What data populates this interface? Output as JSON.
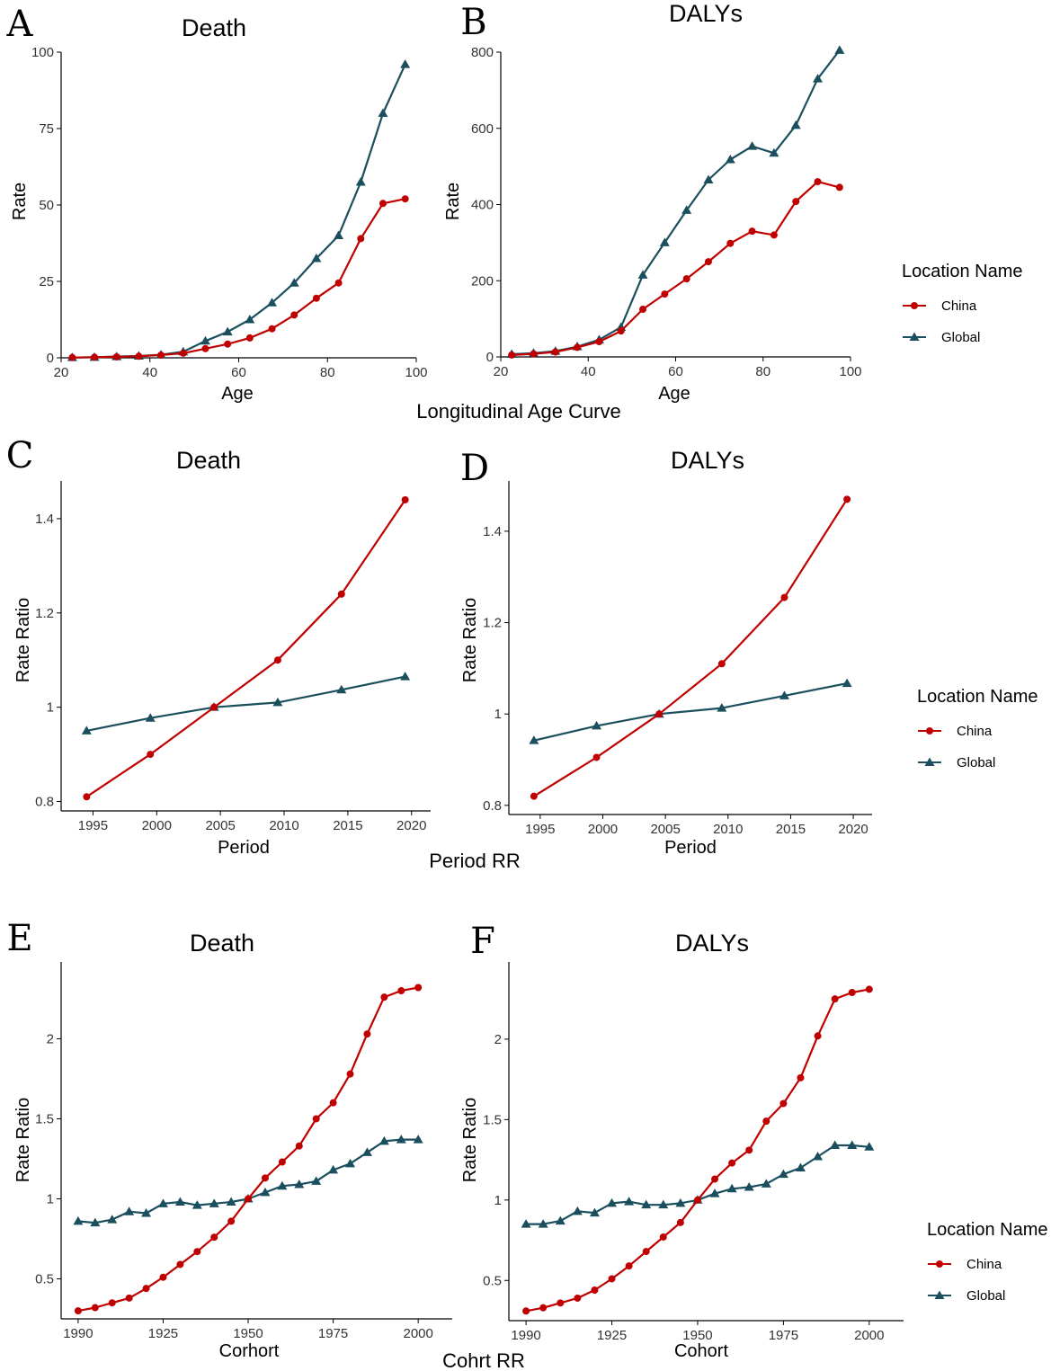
{
  "colors": {
    "china": "#c00000",
    "global": "#1b4f5e",
    "axis": "#000000"
  },
  "section_titles": {
    "age": "Longitudinal Age Curve",
    "period": "Period RR",
    "cohort": "Cohrt RR"
  },
  "legend": {
    "title": "Location Name",
    "china": "China",
    "global": "Global"
  },
  "chart_data": [
    {
      "id": "A",
      "panel_label": "A",
      "type": "line",
      "title": "Death",
      "xlabel": "Age",
      "ylabel": "Rate",
      "xlim": [
        20,
        100
      ],
      "ylim": [
        0,
        100
      ],
      "xticks": [
        20,
        40,
        60,
        80,
        100
      ],
      "yticks": [
        0,
        25,
        50,
        75,
        100
      ],
      "x": [
        22.5,
        27.5,
        32.5,
        37.5,
        42.5,
        47.5,
        52.5,
        57.5,
        62.5,
        67.5,
        72.5,
        77.5,
        82.5,
        87.5,
        92.5,
        97.5
      ],
      "series": [
        {
          "name": "China",
          "values": [
            0.1,
            0.2,
            0.3,
            0.5,
            0.9,
            1.5,
            3.0,
            4.5,
            6.5,
            9.5,
            14,
            19.5,
            24.5,
            39,
            50.5,
            52
          ]
        },
        {
          "name": "Global",
          "values": [
            0.1,
            0.2,
            0.4,
            0.6,
            1.0,
            2.0,
            5.5,
            8.5,
            12.5,
            18,
            24.5,
            32.5,
            40,
            57.5,
            80,
            96
          ]
        }
      ]
    },
    {
      "id": "B",
      "panel_label": "B",
      "type": "line",
      "title": "DALYs",
      "xlabel": "Age",
      "ylabel": "Rate",
      "xlim": [
        20,
        100
      ],
      "ylim": [
        0,
        800
      ],
      "xticks": [
        20,
        40,
        60,
        80,
        100
      ],
      "yticks": [
        0,
        200,
        400,
        600,
        800
      ],
      "x": [
        22.5,
        27.5,
        32.5,
        37.5,
        42.5,
        47.5,
        52.5,
        57.5,
        62.5,
        67.5,
        72.5,
        77.5,
        82.5,
        87.5,
        92.5,
        97.5
      ],
      "series": [
        {
          "name": "China",
          "values": [
            5,
            8,
            13,
            25,
            40,
            68,
            125,
            165,
            205,
            250,
            298,
            330,
            320,
            408,
            460,
            445
          ]
        },
        {
          "name": "Global",
          "values": [
            7,
            10,
            15,
            27,
            45,
            78,
            215,
            300,
            385,
            465,
            518,
            553,
            535,
            608,
            730,
            805
          ]
        }
      ]
    },
    {
      "id": "C",
      "panel_label": "C",
      "type": "line",
      "title": "Death",
      "xlabel": "Period",
      "ylabel": "Rate Ratio",
      "xlim": [
        1992.5,
        2021.5
      ],
      "ylim": [
        0.78,
        1.48
      ],
      "xticks": [
        1995,
        2000,
        2005,
        2010,
        2015,
        2020
      ],
      "yticks": [
        0.8,
        1.0,
        1.2,
        1.4
      ],
      "x": [
        1994.5,
        1999.5,
        2004.5,
        2009.5,
        2014.5,
        2019.5
      ],
      "series": [
        {
          "name": "China",
          "values": [
            0.81,
            0.9,
            1.0,
            1.1,
            1.24,
            1.44
          ]
        },
        {
          "name": "Global",
          "values": [
            0.95,
            0.977,
            1.0,
            1.01,
            1.037,
            1.065
          ]
        }
      ]
    },
    {
      "id": "D",
      "panel_label": "D",
      "type": "line",
      "title": "DALYs",
      "xlabel": "Period",
      "ylabel": "Rate Ratio",
      "xlim": [
        1992.5,
        2021.5
      ],
      "ylim": [
        0.78,
        1.51
      ],
      "xticks": [
        1995,
        2000,
        2005,
        2010,
        2015,
        2020
      ],
      "yticks": [
        0.8,
        1.0,
        1.2,
        1.4
      ],
      "x": [
        1994.5,
        1999.5,
        2004.5,
        2009.5,
        2014.5,
        2019.5
      ],
      "series": [
        {
          "name": "China",
          "values": [
            0.82,
            0.905,
            1.0,
            1.11,
            1.255,
            1.47
          ]
        },
        {
          "name": "Global",
          "values": [
            0.942,
            0.974,
            1.0,
            1.013,
            1.04,
            1.067
          ]
        }
      ]
    },
    {
      "id": "E",
      "panel_label": "E",
      "type": "line",
      "title": "Death",
      "xlabel": "Corhort",
      "ylabel": "Rate Ratio",
      "xlim": [
        0,
        23
      ],
      "ylim": [
        0.25,
        2.48
      ],
      "xticks": [
        1,
        6,
        11,
        16,
        21
      ],
      "xtick_labels": [
        "1990",
        "1925",
        "1950",
        "1975",
        "2000"
      ],
      "yticks": [
        0.5,
        1.0,
        1.5,
        2.0
      ],
      "x": [
        1,
        2,
        3,
        4,
        5,
        6,
        7,
        8,
        9,
        10,
        11,
        12,
        13,
        14,
        15,
        16,
        17,
        18,
        19,
        20,
        21
      ],
      "series": [
        {
          "name": "China",
          "values": [
            0.3,
            0.32,
            0.35,
            0.38,
            0.44,
            0.51,
            0.59,
            0.67,
            0.76,
            0.86,
            1.0,
            1.13,
            1.23,
            1.33,
            1.5,
            1.6,
            1.78,
            2.03,
            2.26,
            2.3,
            2.32
          ]
        },
        {
          "name": "Global",
          "values": [
            0.86,
            0.85,
            0.87,
            0.92,
            0.91,
            0.97,
            0.98,
            0.96,
            0.97,
            0.98,
            1.0,
            1.04,
            1.08,
            1.09,
            1.11,
            1.18,
            1.22,
            1.29,
            1.36,
            1.37,
            1.37
          ]
        }
      ]
    },
    {
      "id": "F",
      "panel_label": "F",
      "type": "line",
      "title": "DALYs",
      "xlabel": "Cohort",
      "ylabel": "Rate Ratio",
      "xlim": [
        0,
        23
      ],
      "ylim": [
        0.25,
        2.48
      ],
      "xticks": [
        1,
        6,
        11,
        16,
        21
      ],
      "xtick_labels": [
        "1990",
        "1925",
        "1950",
        "1975",
        "2000"
      ],
      "yticks": [
        0.5,
        1.0,
        1.5,
        2.0
      ],
      "x": [
        1,
        2,
        3,
        4,
        5,
        6,
        7,
        8,
        9,
        10,
        11,
        12,
        13,
        14,
        15,
        16,
        17,
        18,
        19,
        20,
        21
      ],
      "series": [
        {
          "name": "China",
          "values": [
            0.31,
            0.33,
            0.36,
            0.39,
            0.44,
            0.51,
            0.59,
            0.68,
            0.77,
            0.86,
            1.0,
            1.13,
            1.23,
            1.31,
            1.49,
            1.6,
            1.76,
            2.02,
            2.25,
            2.29,
            2.31
          ]
        },
        {
          "name": "Global",
          "values": [
            0.85,
            0.85,
            0.87,
            0.93,
            0.92,
            0.98,
            0.99,
            0.97,
            0.97,
            0.98,
            1.0,
            1.04,
            1.07,
            1.08,
            1.1,
            1.16,
            1.2,
            1.27,
            1.34,
            1.34,
            1.33
          ]
        }
      ]
    }
  ]
}
